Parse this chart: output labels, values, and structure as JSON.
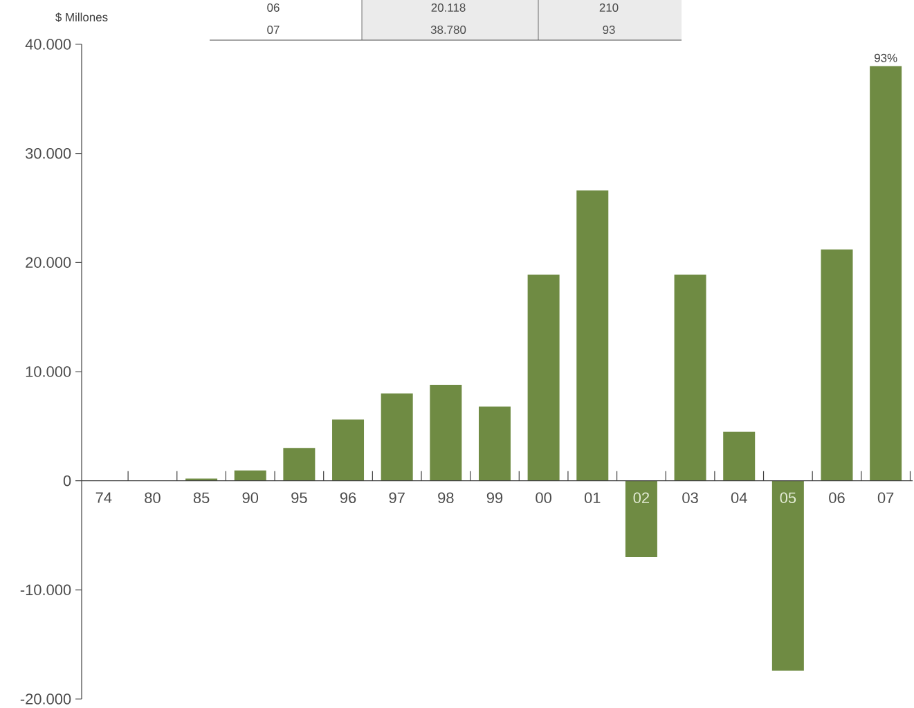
{
  "chart_data": {
    "type": "bar",
    "ylabel": "$ Millones",
    "categories": [
      "74",
      "80",
      "85",
      "90",
      "95",
      "96",
      "97",
      "98",
      "99",
      "00",
      "01",
      "02",
      "03",
      "04",
      "05",
      "06",
      "07"
    ],
    "values": [
      0,
      0,
      200,
      950,
      3000,
      5600,
      8000,
      8800,
      6800,
      18900,
      26600,
      -7000,
      18900,
      4500,
      -17400,
      21200,
      38000
    ],
    "color": "#6f8b43",
    "ylim": [
      -20000,
      40000
    ],
    "yticks": [
      {
        "value": -20000,
        "label": "-20.000"
      },
      {
        "value": -10000,
        "label": "-10.000"
      },
      {
        "value": 0,
        "label": "0"
      },
      {
        "value": 10000,
        "label": "10.000"
      },
      {
        "value": 20000,
        "label": "20.000"
      },
      {
        "value": 30000,
        "label": "30.000"
      },
      {
        "value": 40000,
        "label": "40.000"
      }
    ],
    "grid": false,
    "annotations": [
      "06",
      "20.118",
      "210",
      "07",
      "38.780",
      "93",
      {
        "text": "93%",
        "x": "07",
        "y": 38000
      }
    ]
  }
}
